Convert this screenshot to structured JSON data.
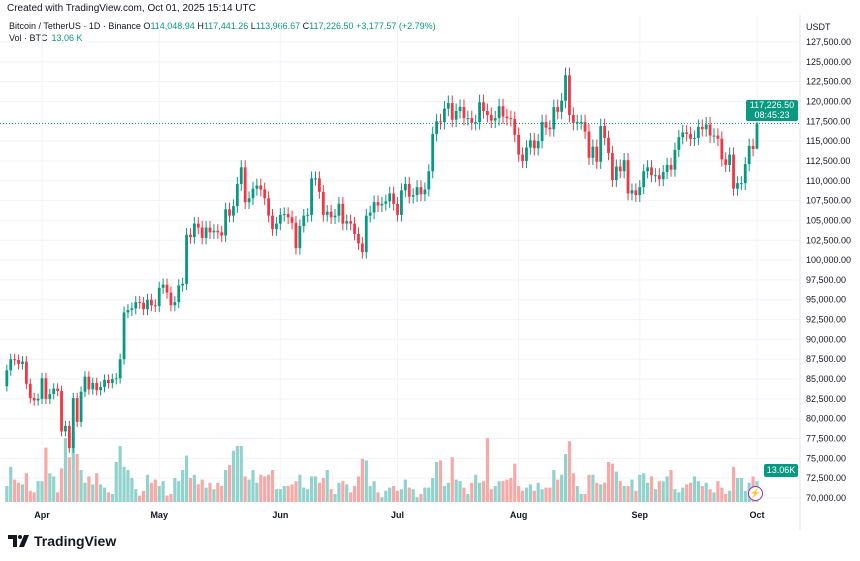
{
  "header": {
    "created": "Created with TradingView.com, Oct 01, 2025 15:14 UTC",
    "symbol": "Bitcoin / TetherUS · 1D · Binance",
    "o_label": "O",
    "o": "114,048.94",
    "h_label": "H",
    "h": "117,441.26",
    "l_label": "L",
    "l": "113,966.67",
    "c_label": "C",
    "c": "117,226.50",
    "change": "+3,177.57 (+2.79%)",
    "vol_label": "Vol · BTC",
    "vol": "13.06 K",
    "currency": "USDT"
  },
  "price_tag": {
    "price": "117,226.50",
    "countdown": "08:45:23"
  },
  "volume_tag": "13.06K",
  "logo": "TradingView",
  "colors": {
    "up": "#089981",
    "down": "#f23645",
    "vol_up": "#92d2cc",
    "vol_down": "#f7a9a7",
    "grid": "#f0f3fa"
  },
  "chart_data": {
    "type": "candlestick",
    "start_date": "2025-03-23",
    "interval": "1D",
    "last_candle": {
      "open": 114048.94,
      "high": 117441.26,
      "low": 113966.67,
      "close": 117226.5,
      "volume_k": 13.06
    },
    "first_open": 84100,
    "close": [
      86100,
      87500,
      87400,
      86900,
      87200,
      84400,
      82600,
      82300,
      82500,
      85100,
      82500,
      83100,
      83800,
      83500,
      78400,
      79100,
      76300,
      82600,
      79600,
      83400,
      85300,
      83700,
      84500,
      83600,
      84000,
      84900,
      84500,
      85000,
      85100,
      87500,
      93400,
      93700,
      93900,
      94700,
      94600,
      93800,
      95000,
      94300,
      94200,
      96500,
      96900,
      95900,
      94300,
      94700,
      96800,
      97000,
      103200,
      102900,
      104600,
      104100,
      102800,
      104100,
      103500,
      103700,
      103500,
      103100,
      106400,
      105600,
      106800,
      109600,
      111700,
      107300,
      107800,
      109000,
      109400,
      108900,
      107800,
      105600,
      103900,
      104600,
      105700,
      105800,
      105400,
      104700,
      101500,
      104300,
      105600,
      105700,
      110300,
      110300,
      108600,
      105700,
      106100,
      105400,
      105600,
      107100,
      104600,
      104900,
      104600,
      103300,
      102100,
      101000,
      105600,
      106000,
      107300,
      106900,
      107100,
      107400,
      108400,
      107100,
      105700,
      108800,
      109600,
      108000,
      108200,
      109200,
      108300,
      108900,
      111200,
      115900,
      117500,
      117400,
      119100,
      119800,
      117700,
      118800,
      119300,
      117900,
      117900,
      117300,
      117400,
      119900,
      118800,
      118300,
      117600,
      117900,
      119400,
      118100,
      117900,
      117800,
      115800,
      113300,
      112500,
      114200,
      115100,
      114100,
      115000,
      117400,
      116700,
      116500,
      119300,
      118700,
      120100,
      123300,
      118300,
      117300,
      117400,
      117400,
      116200,
      112900,
      114300,
      112400,
      116900,
      115400,
      113500,
      110100,
      111800,
      111200,
      112600,
      108400,
      108800,
      108200,
      109200,
      111200,
      111700,
      110700,
      110700,
      110200,
      111100,
      112000,
      111400,
      113900,
      115500,
      116100,
      115900,
      115300,
      115400,
      116800,
      116500,
      117100,
      115700,
      115700,
      115300,
      112700,
      112000,
      113300,
      109000,
      109700,
      109700,
      112100,
      114400,
      114000,
      117226.5
    ],
    "volume_k": [
      10,
      22,
      14,
      12,
      11,
      18,
      7,
      6,
      13,
      13,
      34,
      18,
      16,
      6,
      21,
      40,
      28,
      44,
      30,
      20,
      12,
      16,
      11,
      18,
      11,
      9,
      6,
      5,
      25,
      35,
      22,
      20,
      15,
      8,
      4,
      7,
      17,
      12,
      14,
      10,
      13,
      4,
      5,
      15,
      13,
      20,
      29,
      15,
      17,
      11,
      14,
      9,
      12,
      8,
      12,
      10,
      20,
      23,
      32,
      35,
      35,
      16,
      14,
      20,
      12,
      17,
      16,
      17,
      20,
      8,
      8,
      10,
      10,
      11,
      13,
      17,
      9,
      8,
      16,
      16,
      12,
      15,
      20,
      8,
      5,
      12,
      13,
      11,
      6,
      10,
      16,
      27,
      26,
      10,
      13,
      6,
      3,
      7,
      9,
      10,
      7,
      8,
      14,
      9,
      8,
      3,
      5,
      9,
      9,
      15,
      25,
      26,
      10,
      12,
      28,
      14,
      13,
      9,
      5,
      12,
      17,
      12,
      13,
      40,
      8,
      10,
      13,
      13,
      14,
      15,
      24,
      10,
      7,
      9,
      11,
      7,
      12,
      8,
      9,
      9,
      20,
      14,
      17,
      30,
      38,
      18,
      10,
      5,
      5,
      17,
      17,
      12,
      11,
      12,
      25,
      24,
      19,
      13,
      10,
      10,
      14,
      7,
      17,
      18,
      12,
      16,
      8,
      13,
      13,
      16,
      20,
      8,
      6,
      9,
      11,
      12,
      16,
      13,
      10,
      12,
      8,
      6,
      13,
      9,
      5,
      7,
      22,
      15,
      15,
      7,
      12,
      16,
      13.06
    ],
    "y_ticks": [
      "127,500.00",
      "125,000.00",
      "122,500.00",
      "120,000.00",
      "117,500.00",
      "115,000.00",
      "112,500.00",
      "110,000.00",
      "107,500.00",
      "105,000.00",
      "102,500.00",
      "100,000.00",
      "97,500.00",
      "95,000.00",
      "92,500.00",
      "90,000.00",
      "87,500.00",
      "85,000.00",
      "82,500.00",
      "80,000.00",
      "77,500.00",
      "75,000.00",
      "72,500.00",
      "70,000.00"
    ],
    "ylim": [
      70000,
      127500
    ],
    "x_ticks": [
      {
        "label": "Apr",
        "day": 9
      },
      {
        "label": "May",
        "day": 39
      },
      {
        "label": "Jun",
        "day": 70
      },
      {
        "label": "Jul",
        "day": 100
      },
      {
        "label": "Aug",
        "day": 131
      },
      {
        "label": "Sep",
        "day": 162
      },
      {
        "label": "Oct",
        "day": 192
      }
    ],
    "grid": true,
    "last_price": 117226.5
  }
}
